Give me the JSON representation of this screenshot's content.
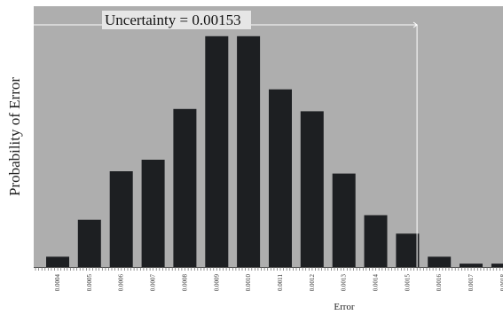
{
  "chart_data": {
    "type": "bar",
    "xlabel": "Error",
    "ylabel": "Probability of Error",
    "categories": [
      "0.0004",
      "0.0005",
      "0.0006",
      "0.0007",
      "0.0008",
      "0.0009",
      "0.0010",
      "0.0011",
      "0.0012",
      "0.0013",
      "0.0014",
      "0.0015",
      "0.0016",
      "0.0017",
      "0.0018"
    ],
    "values": [
      0.045,
      0.205,
      0.415,
      0.465,
      0.685,
      1.0,
      1.0,
      0.77,
      0.675,
      0.405,
      0.225,
      0.145,
      0.045,
      0.015,
      0.015
    ],
    "ylim": [
      0,
      1.13
    ],
    "grid": false,
    "annotation": {
      "label": "Uncertainty = 0.00153",
      "x_value": 0.00153
    },
    "colors": {
      "plot_background": "#aeaeae",
      "bar": "#1d1f22",
      "annotation_line": "#ffffff",
      "annotation_box": "#e6e6e6"
    }
  }
}
